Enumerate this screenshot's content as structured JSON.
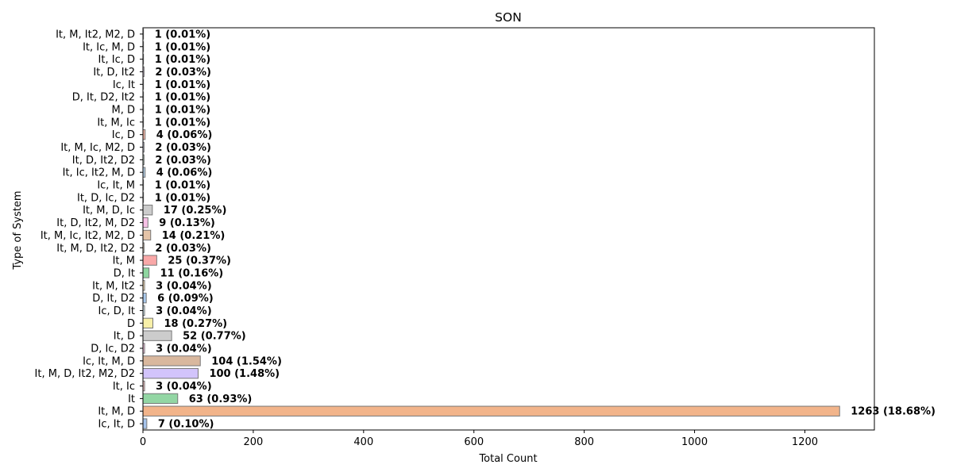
{
  "chart_data": {
    "type": "bar",
    "orientation": "horizontal",
    "title": "SON",
    "xlabel": "Total Count",
    "ylabel": "Type of System",
    "xlim": [
      0,
      1326
    ],
    "xticks": [
      0,
      200,
      400,
      600,
      800,
      1000,
      1200
    ],
    "grid": false,
    "categories": [
      "It, M, It2, M2, D",
      "It, Ic, M, D",
      "It, Ic, D",
      "It, D, It2",
      "Ic, It",
      "D, It, D2, It2",
      "M, D",
      "It, M, Ic",
      "Ic, D",
      "It, M, Ic, M2, D",
      "It, D, It2, D2",
      "It, Ic, It2, M, D",
      "Ic, It, M",
      "It, D, Ic, D2",
      "It, M, D, Ic",
      "It, D, It2, M, D2",
      "It, M, Ic, It2, M2, D",
      "It, M, D, It2, D2",
      "It, M",
      "D, It",
      "It, M, It2",
      "D, It, D2",
      "Ic, D, It",
      "D",
      "It, D",
      "D, Ic, D2",
      "Ic, It, M, D",
      "It, M, D, It2, M2, D2",
      "It, Ic",
      "It",
      "It, M, D",
      "Ic, It, D"
    ],
    "values": [
      1,
      1,
      1,
      2,
      1,
      1,
      1,
      1,
      4,
      2,
      2,
      4,
      1,
      1,
      17,
      9,
      14,
      2,
      25,
      11,
      3,
      6,
      3,
      18,
      52,
      3,
      104,
      100,
      3,
      63,
      1263,
      7
    ],
    "labels": [
      "1 (0.01%)",
      "1 (0.01%)",
      "1 (0.01%)",
      "2 (0.03%)",
      "1 (0.01%)",
      "1 (0.01%)",
      "1 (0.01%)",
      "1 (0.01%)",
      "4 (0.06%)",
      "2 (0.03%)",
      "2 (0.03%)",
      "4 (0.06%)",
      "1 (0.01%)",
      "1 (0.01%)",
      "17 (0.25%)",
      "9 (0.13%)",
      "14 (0.21%)",
      "2 (0.03%)",
      "25 (0.37%)",
      "11 (0.16%)",
      "3 (0.04%)",
      "6 (0.09%)",
      "3 (0.04%)",
      "18 (0.27%)",
      "52 (0.77%)",
      "3 (0.04%)",
      "104 (1.54%)",
      "100 (1.48%)",
      "3 (0.04%)",
      "63 (0.93%)",
      "1263 (18.68%)",
      "7 (0.10%)"
    ],
    "colors": [
      "#fbb4ae",
      "#b3cde3",
      "#ccebc5",
      "#decbe4",
      "#fed9a6",
      "#ffffcc",
      "#e5d8bd",
      "#fddaec",
      "#f2b6a6",
      "#d9d9f3",
      "#c9e7d4",
      "#b3cde3",
      "#fdd6c6",
      "#e9d3f0",
      "#cccccc",
      "#f7c1e6",
      "#e5c4a8",
      "#f5d9c8",
      "#f9a8a8",
      "#8fd6a0",
      "#fbe3bc",
      "#a9c9ec",
      "#d4e8ee",
      "#f7efa8",
      "#cccccc",
      "#f3c6e0",
      "#d9b89e",
      "#d2c4fb",
      "#f6c6c6",
      "#93d6a4",
      "#f2b48a",
      "#a6c4ec"
    ]
  }
}
